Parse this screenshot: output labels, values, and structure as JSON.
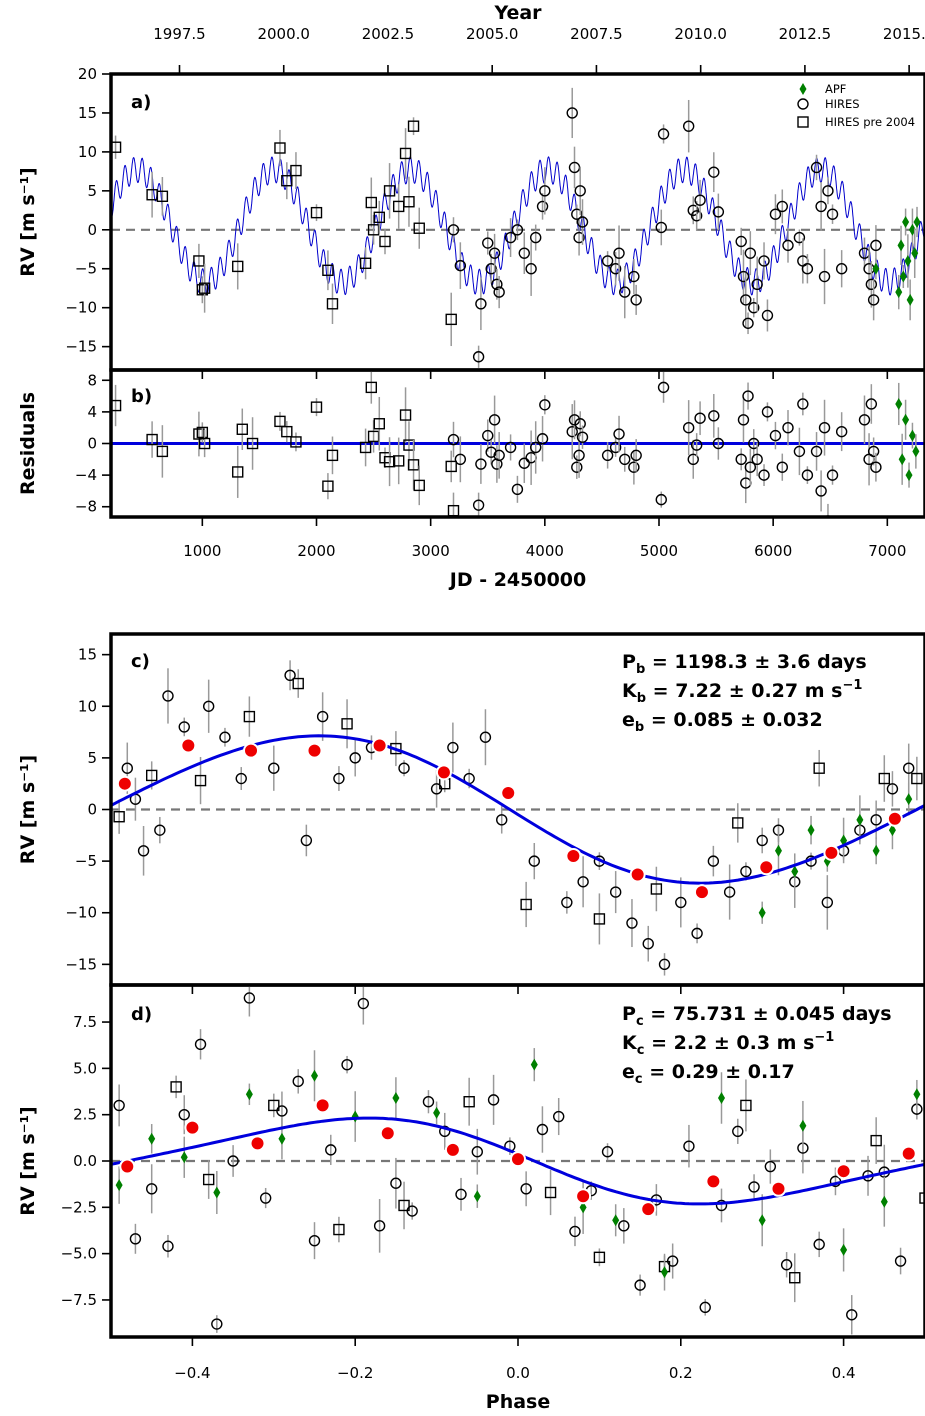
{
  "chart_data": [
    {
      "panel": "a)",
      "type": "scatter",
      "xlabel": "JD - 2450000",
      "ylabel": "RV [m s⁻¹]",
      "top_xlabel": "Year",
      "xlim": [
        200,
        7330
      ],
      "ylim": [
        -18,
        20
      ],
      "xticks": [
        "1000",
        "2000",
        "3000",
        "4000",
        "5000",
        "6000",
        "7000"
      ],
      "yticks": [
        "−15",
        "−10",
        "−5",
        "0",
        "5",
        "10",
        "15",
        "20"
      ],
      "top_ticks": [
        {
          "jd": 800,
          "label": "1997.5"
        },
        {
          "jd": 1713,
          "label": "2000.0"
        },
        {
          "jd": 2626,
          "label": "2002.5"
        },
        {
          "jd": 3539,
          "label": "2005.0"
        },
        {
          "jd": 4452,
          "label": "2007.5"
        },
        {
          "jd": 5365,
          "label": "2010.0"
        },
        {
          "jd": 6278,
          "label": "2012.5"
        },
        {
          "jd": 7191,
          "label": "2015.0"
        }
      ],
      "model": {
        "P_b": 1198.3,
        "K_b": 7.22,
        "e_b": 0.085,
        "P_c": 75.731,
        "K_c": 2.2,
        "e_c": 0.29,
        "color": "#0000cc"
      },
      "legend": {
        "position": "top-right",
        "entries": [
          {
            "label": "APF",
            "marker": "diamond",
            "color": "#008000"
          },
          {
            "label": "HIRES",
            "marker": "circle",
            "color": "#000000"
          },
          {
            "label": "HIRES pre 2004",
            "marker": "square",
            "color": "#000000"
          }
        ]
      },
      "series": [
        {
          "name": "HIRES pre 2004",
          "marker": "square",
          "x": [
            240,
            560,
            650,
            970,
            1000,
            1020,
            1310,
            1680,
            1740,
            1820,
            2000,
            2100,
            2140,
            2430,
            2480,
            2500,
            2550,
            2600,
            2640,
            2720,
            2780,
            2810,
            2850,
            2900,
            3180
          ],
          "y": [
            10.6,
            4.5,
            4.3,
            -4,
            -7.7,
            -7.5,
            -4.7,
            10.5,
            6.3,
            7.6,
            2.2,
            -5.2,
            -9.5,
            -4.3,
            3.5,
            0,
            1.6,
            -1.5,
            5,
            3,
            9.8,
            3.6,
            13.3,
            0.2,
            -11.5
          ]
        },
        {
          "name": "HIRES",
          "marker": "circle",
          "x": [
            3200,
            3260,
            3420,
            3440,
            3500,
            3530,
            3560,
            3580,
            3600,
            3700,
            3760,
            3820,
            3880,
            3920,
            3980,
            4000,
            4240,
            4260,
            4280,
            4300,
            4310,
            4330,
            4550,
            4620,
            4650,
            4700,
            4780,
            4800,
            5020,
            5040,
            5260,
            5300,
            5330,
            5360,
            5480,
            5520,
            5720,
            5740,
            5760,
            5780,
            5800,
            5830,
            5860,
            5920,
            5950,
            6020,
            6080,
            6130,
            6230,
            6260,
            6300,
            6380,
            6420,
            6450,
            6480,
            6520,
            6600,
            6800,
            6840,
            6860,
            6880,
            6900
          ],
          "y": [
            0,
            -4.6,
            -16.3,
            -9.5,
            -1.7,
            -5,
            -3,
            -7,
            -8,
            -1,
            0,
            -3,
            -5,
            -1,
            3,
            5,
            15,
            8,
            2,
            -1,
            5,
            1,
            -4,
            -5,
            -3,
            -8,
            -6,
            -9,
            0.3,
            12.3,
            13.3,
            2.5,
            1.8,
            3.8,
            7.4,
            2.3,
            -1.5,
            -6,
            -9,
            -12,
            -3,
            -10,
            -7,
            -4,
            -11,
            2,
            3,
            -2,
            -1,
            -4,
            -5,
            8,
            3,
            -6,
            5,
            2,
            -5,
            -3,
            -5,
            -7,
            -9,
            -2
          ]
        },
        {
          "name": "APF",
          "marker": "diamond",
          "x": [
            6900,
            7100,
            7120,
            7140,
            7160,
            7180,
            7200,
            7220,
            7240,
            7260
          ],
          "y": [
            -5,
            -8,
            -2,
            -6,
            1,
            -4,
            -9,
            0,
            -3,
            1
          ]
        }
      ]
    },
    {
      "panel": "b)",
      "type": "scatter",
      "ylabel": "Residuals",
      "xlim": [
        200,
        7330
      ],
      "ylim": [
        -9.3,
        9.3
      ],
      "yticks": [
        "8",
        "4",
        "0",
        "−4",
        "−8"
      ],
      "series": [
        {
          "name": "HIRES pre 2004",
          "marker": "square",
          "x": [
            240,
            560,
            650,
            970,
            1000,
            1020,
            1310,
            1350,
            1440,
            1680,
            1740,
            1820,
            2000,
            2100,
            2140,
            2430,
            2480,
            2500,
            2550,
            2600,
            2640,
            2720,
            2780,
            2810,
            2850,
            2900,
            3180,
            3200
          ],
          "y": [
            4.8,
            0.5,
            -1,
            1.2,
            1.4,
            0,
            -3.6,
            1.8,
            0,
            2.8,
            1.5,
            0.2,
            4.6,
            -5.4,
            -1.5,
            -0.5,
            7.1,
            0.9,
            2.5,
            -1.8,
            -2.3,
            -2.2,
            3.6,
            -0.2,
            -2.7,
            -5.3,
            -2.9,
            -8.5
          ]
        },
        {
          "name": "HIRES",
          "marker": "circle",
          "x": [
            3200,
            3260,
            3420,
            3440,
            3500,
            3530,
            3560,
            3580,
            3600,
            3700,
            3760,
            3820,
            3880,
            3920,
            3980,
            4000,
            4240,
            4260,
            4280,
            4300,
            4310,
            4330,
            4550,
            4620,
            4650,
            4700,
            4780,
            4800,
            5020,
            5040,
            5260,
            5300,
            5330,
            5360,
            5480,
            5520,
            5720,
            5740,
            5760,
            5780,
            5800,
            5830,
            5860,
            5920,
            5950,
            6020,
            6080,
            6130,
            6230,
            6260,
            6300,
            6380,
            6420,
            6450,
            6480,
            6520,
            6600,
            6800,
            6840,
            6860,
            6880,
            6900
          ],
          "y": [
            0.5,
            -2,
            -7.8,
            -2.6,
            1,
            -1.1,
            3,
            -2.6,
            -1.5,
            -0.5,
            -5.8,
            -2.5,
            -1.8,
            -0.5,
            0.6,
            4.9,
            1.5,
            3,
            -3,
            -1.5,
            2.5,
            0.8,
            -1.5,
            -0.5,
            1.2,
            -2,
            -3,
            -1.5,
            -7.1,
            7.1,
            2,
            -2,
            -0.2,
            3.2,
            3.5,
            0,
            -2,
            3,
            -5,
            6,
            -3,
            0,
            -2,
            -4,
            4,
            1,
            -3,
            2,
            -1,
            5,
            -4,
            -1,
            -6,
            2,
            -9.8,
            -4,
            1.5,
            3,
            -2,
            5,
            -1,
            -3
          ]
        },
        {
          "name": "APF",
          "marker": "diamond",
          "x": [
            7100,
            7130,
            7160,
            7190,
            7220,
            7250
          ],
          "y": [
            5,
            -2,
            3,
            -4,
            1,
            -1
          ]
        }
      ]
    },
    {
      "panel": "c)",
      "type": "scatter",
      "xlim": [
        -0.5,
        0.5
      ],
      "ylim": [
        -17,
        17
      ],
      "ylabel": "RV [m s⁻¹]",
      "yticks": [
        "15",
        "10",
        "5",
        "0",
        "−5",
        "−10",
        "−15"
      ],
      "annotations": [
        "P_b = 1198.3 ± 3.6 days",
        "K_b = 7.22 ± 0.27 m s^-1",
        "e_b = 0.085 ± 0.032"
      ],
      "binned": {
        "x": [
          -0.483,
          -0.405,
          -0.328,
          -0.25,
          -0.17,
          -0.091,
          -0.012,
          0.068,
          0.147,
          0.226,
          0.305,
          0.385,
          0.463
        ],
        "y": [
          2.5,
          6.2,
          5.7,
          5.7,
          6.2,
          3.6,
          1.6,
          -4.5,
          -6.3,
          -8,
          -5.6,
          -4.2,
          -0.9
        ]
      },
      "series": [
        {
          "name": "HIRES",
          "marker": "circle",
          "x": [
            -0.48,
            -0.47,
            -0.46,
            -0.44,
            -0.43,
            -0.41,
            -0.38,
            -0.36,
            -0.34,
            -0.3,
            -0.28,
            -0.26,
            -0.24,
            -0.22,
            -0.2,
            -0.18,
            -0.14,
            -0.1,
            -0.08,
            -0.06,
            -0.04,
            -0.02,
            0.02,
            0.06,
            0.08,
            0.1,
            0.12,
            0.14,
            0.16,
            0.18,
            0.2,
            0.22,
            0.24,
            0.26,
            0.28,
            0.3,
            0.32,
            0.34,
            0.36,
            0.38,
            0.4,
            0.42,
            0.44,
            0.46,
            0.48
          ],
          "y": [
            4,
            1,
            -4,
            -2,
            11,
            8,
            10,
            7,
            3,
            4,
            13,
            -3,
            9,
            3,
            5,
            6,
            4,
            2,
            6,
            3,
            7,
            -1,
            -5,
            -9,
            -7,
            -5,
            -8,
            -11,
            -13,
            -15,
            -9,
            -12,
            -5,
            -8,
            -6,
            -3,
            -2,
            -7,
            -5,
            -9,
            -4,
            -2,
            -1,
            2,
            4
          ]
        },
        {
          "name": "HIRES pre 2004",
          "marker": "square",
          "x": [
            -0.49,
            -0.45,
            -0.39,
            -0.33,
            -0.27,
            -0.21,
            -0.15,
            -0.09,
            0.01,
            0.1,
            0.17,
            0.27,
            0.37,
            0.45,
            0.49
          ],
          "y": [
            -0.7,
            3.3,
            2.8,
            9,
            12.2,
            8.3,
            5.9,
            2.5,
            -9.2,
            -10.6,
            -7.7,
            -1.3,
            4,
            3,
            3
          ]
        },
        {
          "name": "APF",
          "marker": "diamond",
          "x": [
            0.3,
            0.32,
            0.34,
            0.36,
            0.38,
            0.4,
            0.42,
            0.44,
            0.46,
            0.48
          ],
          "y": [
            -10,
            -4,
            -6,
            -2,
            -5,
            -3,
            -1,
            -4,
            -2,
            1
          ]
        }
      ]
    },
    {
      "panel": "d)",
      "type": "scatter",
      "xlabel": "Phase",
      "ylabel": "RV [m s⁻¹]",
      "xlim": [
        -0.5,
        0.5
      ],
      "ylim": [
        -9.5,
        9.5
      ],
      "xticks": [
        "−0.4",
        "−0.2",
        "0.0",
        "0.2",
        "0.4"
      ],
      "yticks": [
        "7.5",
        "5.0",
        "2.5",
        "0.0",
        "−2.5",
        "−5.0",
        "−7.5"
      ],
      "annotations": [
        "P_c = 75.731 ± 0.045 days",
        "K_c = 2.2 ± 0.3 m s^-1",
        "e_c = 0.29 ± 0.17"
      ],
      "binned": {
        "x": [
          -0.48,
          -0.4,
          -0.32,
          -0.24,
          -0.16,
          -0.08,
          0.0,
          0.08,
          0.16,
          0.24,
          0.32,
          0.4,
          0.48
        ],
        "y": [
          -0.3,
          1.8,
          0.95,
          3,
          1.5,
          0.6,
          0.1,
          -1.9,
          -2.6,
          -1.1,
          -1.5,
          -0.55,
          0.4
        ]
      },
      "series": [
        {
          "name": "HIRES",
          "marker": "circle",
          "x": [
            -0.49,
            -0.47,
            -0.45,
            -0.43,
            -0.41,
            -0.39,
            -0.37,
            -0.35,
            -0.33,
            -0.31,
            -0.29,
            -0.27,
            -0.25,
            -0.23,
            -0.21,
            -0.19,
            -0.17,
            -0.15,
            -0.13,
            -0.11,
            -0.09,
            -0.07,
            -0.05,
            -0.03,
            -0.01,
            0.01,
            0.03,
            0.05,
            0.07,
            0.09,
            0.11,
            0.13,
            0.15,
            0.17,
            0.19,
            0.21,
            0.23,
            0.25,
            0.27,
            0.29,
            0.31,
            0.33,
            0.35,
            0.37,
            0.39,
            0.41,
            0.43,
            0.45,
            0.47,
            0.49
          ],
          "y": [
            3,
            -4.2,
            -1.5,
            -4.6,
            2.5,
            6.3,
            -8.8,
            0,
            8.8,
            -2,
            2.7,
            4.3,
            -4.3,
            0.6,
            5.2,
            8.5,
            -3.5,
            -1.2,
            -2.7,
            3.2,
            1.6,
            -1.8,
            0.5,
            3.3,
            0.8,
            -1.5,
            1.7,
            2.4,
            -3.8,
            -1.6,
            0.5,
            -3.5,
            -6.7,
            -2.1,
            -5.4,
            0.8,
            -7.9,
            -2.4,
            1.6,
            -1.4,
            -0.3,
            -5.6,
            0.7,
            -4.5,
            -1.1,
            -8.3,
            -0.8,
            -0.6,
            -5.4,
            2.8
          ]
        },
        {
          "name": "HIRES pre 2004",
          "marker": "square",
          "x": [
            -0.42,
            -0.38,
            -0.3,
            -0.22,
            -0.14,
            -0.06,
            0.04,
            0.1,
            0.18,
            0.28,
            0.34,
            0.44,
            0.5
          ],
          "y": [
            4,
            -1,
            3,
            -3.7,
            -2.4,
            3.2,
            -1.7,
            -5.2,
            -5.7,
            3,
            -6.3,
            1.1,
            -2
          ]
        },
        {
          "name": "APF",
          "marker": "diamond",
          "x": [
            -0.49,
            -0.45,
            -0.41,
            -0.37,
            -0.33,
            -0.29,
            -0.25,
            -0.2,
            -0.15,
            -0.1,
            -0.05,
            0.02,
            0.08,
            0.12,
            0.18,
            0.25,
            0.3,
            0.35,
            0.4,
            0.45,
            0.49
          ],
          "y": [
            -1.3,
            1.2,
            0.2,
            -1.7,
            3.6,
            1.2,
            4.6,
            2.4,
            3.4,
            2.6,
            -1.9,
            5.2,
            -2.5,
            -3.2,
            -6,
            3.4,
            -3.2,
            1.9,
            -4.8,
            -2.2,
            3.6
          ]
        }
      ]
    }
  ]
}
